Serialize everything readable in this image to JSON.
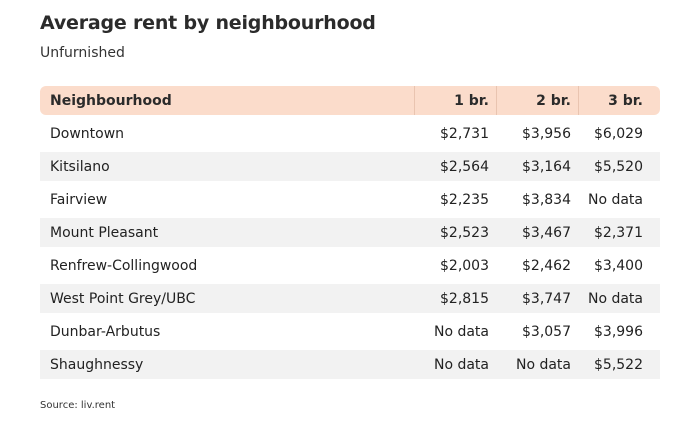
{
  "title": "Average rent by neighbourhood",
  "subtitle": "Unfurnished",
  "source": "Source: liv.rent",
  "chart_data": {
    "type": "table",
    "columns": [
      "Neighbourhood",
      "1 br.",
      "2 br.",
      "3 br."
    ],
    "rows": [
      [
        "Downtown",
        "$2,731",
        "$3,956",
        "$6,029"
      ],
      [
        "Kitsilano",
        "$2,564",
        "$3,164",
        "$5,520"
      ],
      [
        "Fairview",
        "$2,235",
        "$3,834",
        "No data"
      ],
      [
        "Mount Pleasant",
        "$2,523",
        "$3,467",
        "$2,371"
      ],
      [
        "Renfrew-Collingwood",
        "$2,003",
        "$2,462",
        "$3,400"
      ],
      [
        "West Point Grey/UBC",
        "$2,815",
        "$3,747",
        "No data"
      ],
      [
        "Dunbar-Arbutus",
        "No data",
        "$3,057",
        "$3,996"
      ],
      [
        "Shaughnessy",
        "No data",
        "No data",
        "$5,522"
      ]
    ]
  }
}
